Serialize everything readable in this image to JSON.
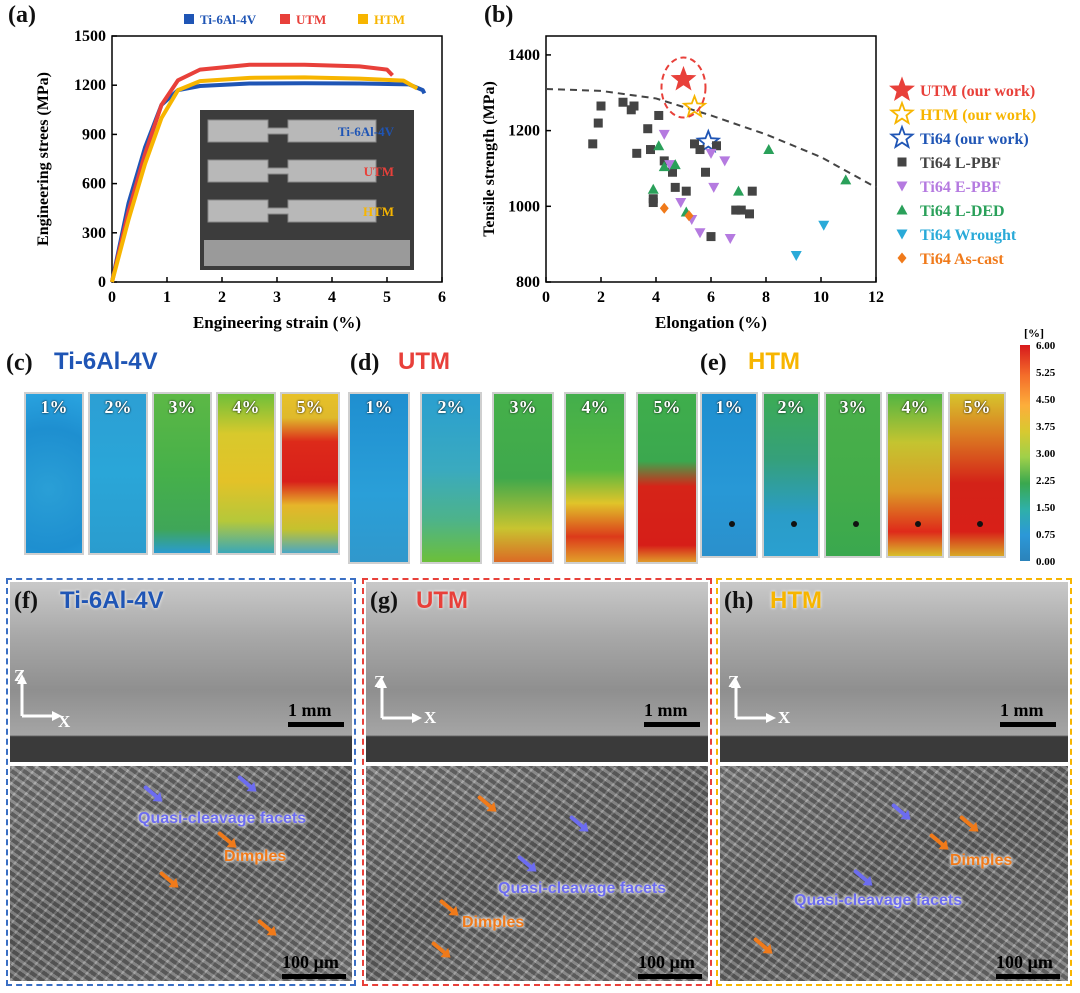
{
  "panels": {
    "a": {
      "label": "(a)"
    },
    "b": {
      "label": "(b)"
    },
    "c": {
      "label": "(c)",
      "title": "Ti-6Al-4V"
    },
    "d": {
      "label": "(d)",
      "title": "UTM"
    },
    "e": {
      "label": "(e)",
      "title": "HTM"
    },
    "f": {
      "label": "(f)",
      "title": "Ti-6Al-4V"
    },
    "g": {
      "label": "(g)",
      "title": "UTM"
    },
    "h": {
      "label": "(h)",
      "title": "HTM"
    }
  },
  "colors": {
    "ti64": "#1f55b5",
    "utm": "#e8403a",
    "htm": "#f7b500"
  },
  "chart_data": [
    {
      "type": "line",
      "xlabel": "Engineering strain (%)",
      "ylabel": "Engineering strees (MPa)",
      "xlim": [
        0,
        6
      ],
      "ylim": [
        0,
        1500
      ],
      "xticks": [
        "0",
        "1",
        "2",
        "3",
        "4",
        "5",
        "6"
      ],
      "yticks": [
        "0",
        "300",
        "600",
        "900",
        "1200",
        "1500"
      ],
      "legend_position": "top",
      "series": [
        {
          "name": "Ti-6Al-4V",
          "color": "#1f55b5",
          "x": [
            0,
            0.3,
            0.6,
            0.9,
            1.2,
            1.6,
            2.5,
            3.5,
            4.5,
            5.4,
            5.65,
            5.68
          ],
          "y": [
            0,
            480,
            820,
            1080,
            1170,
            1195,
            1210,
            1212,
            1210,
            1205,
            1170,
            1150
          ]
        },
        {
          "name": "UTM",
          "color": "#e8403a",
          "x": [
            0,
            0.3,
            0.6,
            0.9,
            1.2,
            1.6,
            2.5,
            3.5,
            4.5,
            5.0,
            5.1
          ],
          "y": [
            0,
            430,
            780,
            1080,
            1230,
            1295,
            1325,
            1325,
            1315,
            1295,
            1260
          ]
        },
        {
          "name": "HTM",
          "color": "#f7b500",
          "x": [
            0,
            0.3,
            0.6,
            0.9,
            1.2,
            1.6,
            2.5,
            3.5,
            4.5,
            5.3,
            5.55
          ],
          "y": [
            0,
            380,
            720,
            1000,
            1170,
            1225,
            1245,
            1248,
            1240,
            1228,
            1180
          ]
        }
      ],
      "inset_labels": [
        "Ti-6Al-4V",
        "UTM",
        "HTM"
      ]
    },
    {
      "type": "scatter",
      "xlabel": "Elongation (%)",
      "ylabel": "Tensile strength (MPa)",
      "xlim": [
        0,
        12
      ],
      "ylim": [
        800,
        1450
      ],
      "xticks": [
        "0",
        "2",
        "4",
        "6",
        "8",
        "10",
        "12"
      ],
      "yticks": [
        "800",
        "1000",
        "1200",
        "1400"
      ],
      "legend_position": "right",
      "series": [
        {
          "name": "UTM (our work)",
          "marker": "star-filled",
          "color": "#e8403a",
          "points": [
            [
              5.0,
              1335
            ]
          ]
        },
        {
          "name": "HTM (our work)",
          "marker": "star-open",
          "color": "#f7b500",
          "points": [
            [
              5.4,
              1262
            ]
          ]
        },
        {
          "name": "Ti64 (our work)",
          "marker": "star-open",
          "color": "#1f55b5",
          "points": [
            [
              5.9,
              1170
            ]
          ]
        },
        {
          "name": "Ti64 L-PBF",
          "marker": "square",
          "color": "#444444",
          "points": [
            [
              1.7,
              1165
            ],
            [
              1.9,
              1220
            ],
            [
              2.0,
              1265
            ],
            [
              2.8,
              1275
            ],
            [
              3.1,
              1255
            ],
            [
              3.2,
              1265
            ],
            [
              3.3,
              1140
            ],
            [
              3.7,
              1205
            ],
            [
              3.8,
              1150
            ],
            [
              3.9,
              1010
            ],
            [
              4.1,
              1240
            ],
            [
              4.3,
              1120
            ],
            [
              4.6,
              1090
            ],
            [
              4.7,
              1050
            ],
            [
              5.1,
              1040
            ],
            [
              5.4,
              1165
            ],
            [
              5.6,
              1150
            ],
            [
              5.8,
              1090
            ],
            [
              6.0,
              920
            ],
            [
              6.2,
              1160
            ],
            [
              6.9,
              990
            ],
            [
              7.1,
              990
            ],
            [
              7.4,
              980
            ],
            [
              7.5,
              1040
            ],
            [
              3.9,
              1020
            ]
          ]
        },
        {
          "name": "Ti64 E-PBF",
          "marker": "tri-down",
          "color": "#b57ae0",
          "points": [
            [
              4.3,
              1190
            ],
            [
              4.5,
              1110
            ],
            [
              4.9,
              1010
            ],
            [
              5.3,
              965
            ],
            [
              5.6,
              930
            ],
            [
              6.1,
              1050
            ],
            [
              6.5,
              1120
            ],
            [
              6.7,
              915
            ],
            [
              6.0,
              1140
            ]
          ]
        },
        {
          "name": "Ti64 L-DED",
          "marker": "tri-up",
          "color": "#2aa05a",
          "points": [
            [
              3.9,
              1045
            ],
            [
              4.1,
              1160
            ],
            [
              4.3,
              1105
            ],
            [
              4.7,
              1110
            ],
            [
              5.1,
              985
            ],
            [
              7.0,
              1040
            ],
            [
              8.1,
              1150
            ],
            [
              10.9,
              1070
            ]
          ]
        },
        {
          "name": "Ti64 Wrought",
          "marker": "tri-down",
          "color": "#2aaad8",
          "points": [
            [
              9.1,
              870
            ],
            [
              10.1,
              950
            ]
          ]
        },
        {
          "name": "Ti64 As-cast",
          "marker": "diamond",
          "color": "#f07a1a",
          "points": [
            [
              4.3,
              995
            ],
            [
              5.2,
              975
            ]
          ]
        }
      ],
      "trend_line": {
        "x": [
          0,
          2,
          4,
          6,
          8,
          10,
          12
        ],
        "y": [
          1310,
          1305,
          1285,
          1240,
          1190,
          1130,
          1050
        ]
      }
    }
  ],
  "dic": {
    "strain_labels": [
      "1%",
      "2%",
      "3%",
      "4%",
      "5%"
    ],
    "colorbar": {
      "unit": "[%]",
      "ticks": [
        "6.00",
        "5.25",
        "4.50",
        "3.75",
        "3.00",
        "2.25",
        "1.50",
        "0.75",
        "0.00"
      ]
    }
  },
  "sem": {
    "scale_top": "1 mm",
    "scale_bottom": "100 µm",
    "axis_z": "Z",
    "axis_x": "X",
    "annotations": {
      "f": {
        "blue": "Quasi-cleavage facets",
        "orange": "Dimples"
      },
      "g": {
        "blue": "Quasi-cleavage facets",
        "orange": "Dimples"
      },
      "h": {
        "blue": "Quasi-cleavage facets",
        "orange": "Dimples"
      }
    }
  }
}
